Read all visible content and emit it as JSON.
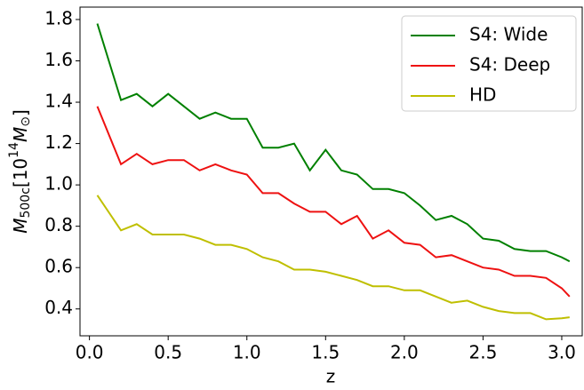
{
  "chart_data": {
    "type": "line",
    "xlabel": "z",
    "ylabel": [
      "M",
      "500c",
      "[10",
      "14",
      "M",
      "⊙",
      "]"
    ],
    "x": [
      0.05,
      0.2,
      0.3,
      0.4,
      0.5,
      0.6,
      0.7,
      0.8,
      0.9,
      1.0,
      1.1,
      1.2,
      1.3,
      1.4,
      1.5,
      1.6,
      1.7,
      1.8,
      1.9,
      2.0,
      2.1,
      2.2,
      2.3,
      2.4,
      2.5,
      2.6,
      2.7,
      2.8,
      2.9,
      3.0,
      3.05
    ],
    "series": [
      {
        "name": "S4: Wide",
        "color": "#008000",
        "values": [
          1.78,
          1.41,
          1.44,
          1.38,
          1.44,
          1.38,
          1.32,
          1.35,
          1.32,
          1.32,
          1.18,
          1.18,
          1.2,
          1.07,
          1.17,
          1.07,
          1.05,
          0.98,
          0.98,
          0.96,
          0.9,
          0.83,
          0.85,
          0.81,
          0.74,
          0.73,
          0.69,
          0.68,
          0.68,
          0.65,
          0.63
        ]
      },
      {
        "name": "S4: Deep",
        "color": "#ee1111",
        "values": [
          1.38,
          1.1,
          1.15,
          1.1,
          1.12,
          1.12,
          1.07,
          1.1,
          1.07,
          1.05,
          0.96,
          0.96,
          0.91,
          0.87,
          0.87,
          0.81,
          0.85,
          0.74,
          0.78,
          0.72,
          0.71,
          0.65,
          0.66,
          0.63,
          0.6,
          0.59,
          0.56,
          0.56,
          0.55,
          0.5,
          0.46
        ]
      },
      {
        "name": "HD",
        "color": "#bfbf00",
        "values": [
          0.95,
          0.78,
          0.81,
          0.76,
          0.76,
          0.76,
          0.74,
          0.71,
          0.71,
          0.69,
          0.65,
          0.63,
          0.59,
          0.59,
          0.58,
          0.56,
          0.54,
          0.51,
          0.51,
          0.49,
          0.49,
          0.46,
          0.43,
          0.44,
          0.41,
          0.39,
          0.38,
          0.38,
          0.35,
          0.355,
          0.36
        ]
      }
    ],
    "xlim": [
      -0.06,
      3.13
    ],
    "ylim": [
      0.27,
      1.86
    ],
    "xticks": [
      {
        "value": 0.0,
        "label": "0.0"
      },
      0.5,
      {
        "value": 1.0,
        "label": "1.0"
      },
      1.5,
      {
        "value": 2.0,
        "label": "2.0"
      },
      2.5,
      {
        "value": 3.0,
        "label": "3.0"
      }
    ],
    "yticks": [
      0.4,
      0.6,
      0.8,
      {
        "value": 1.0,
        "label": "1.0"
      },
      1.2,
      1.4,
      1.6,
      1.8
    ],
    "legend": "upper right"
  }
}
